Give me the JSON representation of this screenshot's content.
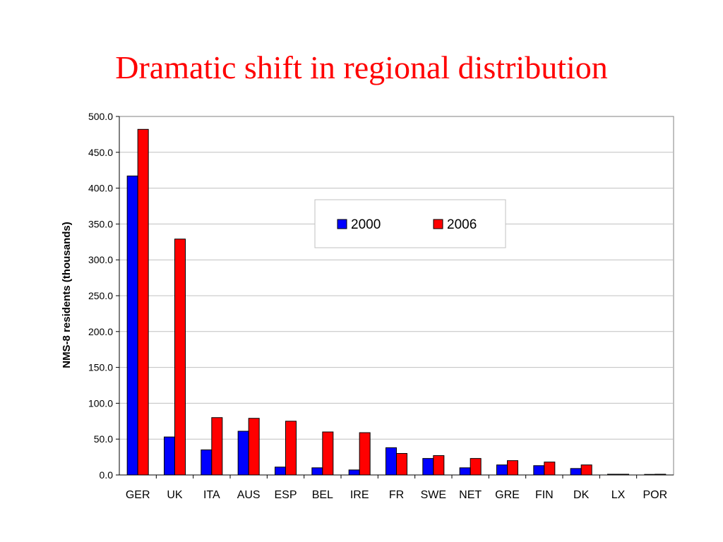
{
  "slide": {
    "title": "Dramatic shift in regional distribution"
  },
  "colors": {
    "series_2000": "#0000ff",
    "series_2006": "#ff0000",
    "gridline": "#c0c0c0",
    "axis": "#808080",
    "title": "#ff0000"
  },
  "chart_data": {
    "type": "bar",
    "title": "",
    "ylabel": "NMS-8 residents (thousands)",
    "xlabel": "",
    "ylim": [
      0,
      500
    ],
    "yticks": [
      "0.0",
      "50.0",
      "100.0",
      "150.0",
      "200.0",
      "250.0",
      "300.0",
      "350.0",
      "400.0",
      "450.0",
      "500.0"
    ],
    "grid": true,
    "legend_position": "top-center",
    "categories": [
      "GER",
      "UK",
      "ITA",
      "AUS",
      "ESP",
      "BEL",
      "IRE",
      "FR",
      "SWE",
      "NET",
      "GRE",
      "FIN",
      "DK",
      "LX",
      "POR"
    ],
    "series": [
      {
        "name": "2000",
        "values": [
          417,
          53,
          35,
          61,
          11,
          10,
          7,
          38,
          23,
          10,
          14,
          13,
          9,
          1,
          0.5
        ]
      },
      {
        "name": "2006",
        "values": [
          482,
          329,
          80,
          79,
          75,
          60,
          59,
          30,
          27,
          23,
          20,
          18,
          14,
          1,
          1
        ]
      }
    ]
  }
}
